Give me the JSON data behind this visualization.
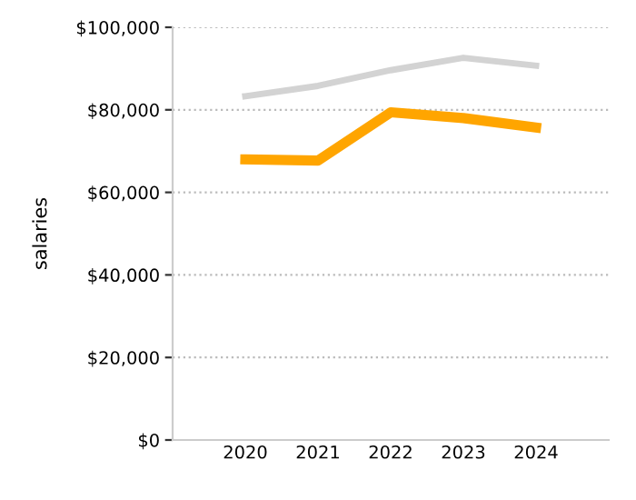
{
  "chart_data": {
    "type": "line",
    "ylabel": "salaries",
    "categories": [
      "2020",
      "2021",
      "2022",
      "2023",
      "2024"
    ],
    "series": [
      {
        "color": "#d3d3d3",
        "values": [
          83300,
          85800,
          89600,
          92600,
          90700
        ]
      },
      {
        "color": "#ffa500",
        "values": [
          68000,
          67700,
          79400,
          78000,
          75700
        ]
      }
    ],
    "ylim": [
      0,
      100000
    ],
    "yticks": [
      {
        "value": 0,
        "label": "$0"
      },
      {
        "value": 20000,
        "label": "$20,000"
      },
      {
        "value": 40000,
        "label": "$40,000"
      },
      {
        "value": 60000,
        "label": "$60,000"
      },
      {
        "value": 80000,
        "label": "$80,000"
      },
      {
        "value": 100000,
        "label": "$100,000"
      }
    ],
    "grid": "y",
    "marker": "none",
    "line_style": "solid",
    "legend": false
  }
}
